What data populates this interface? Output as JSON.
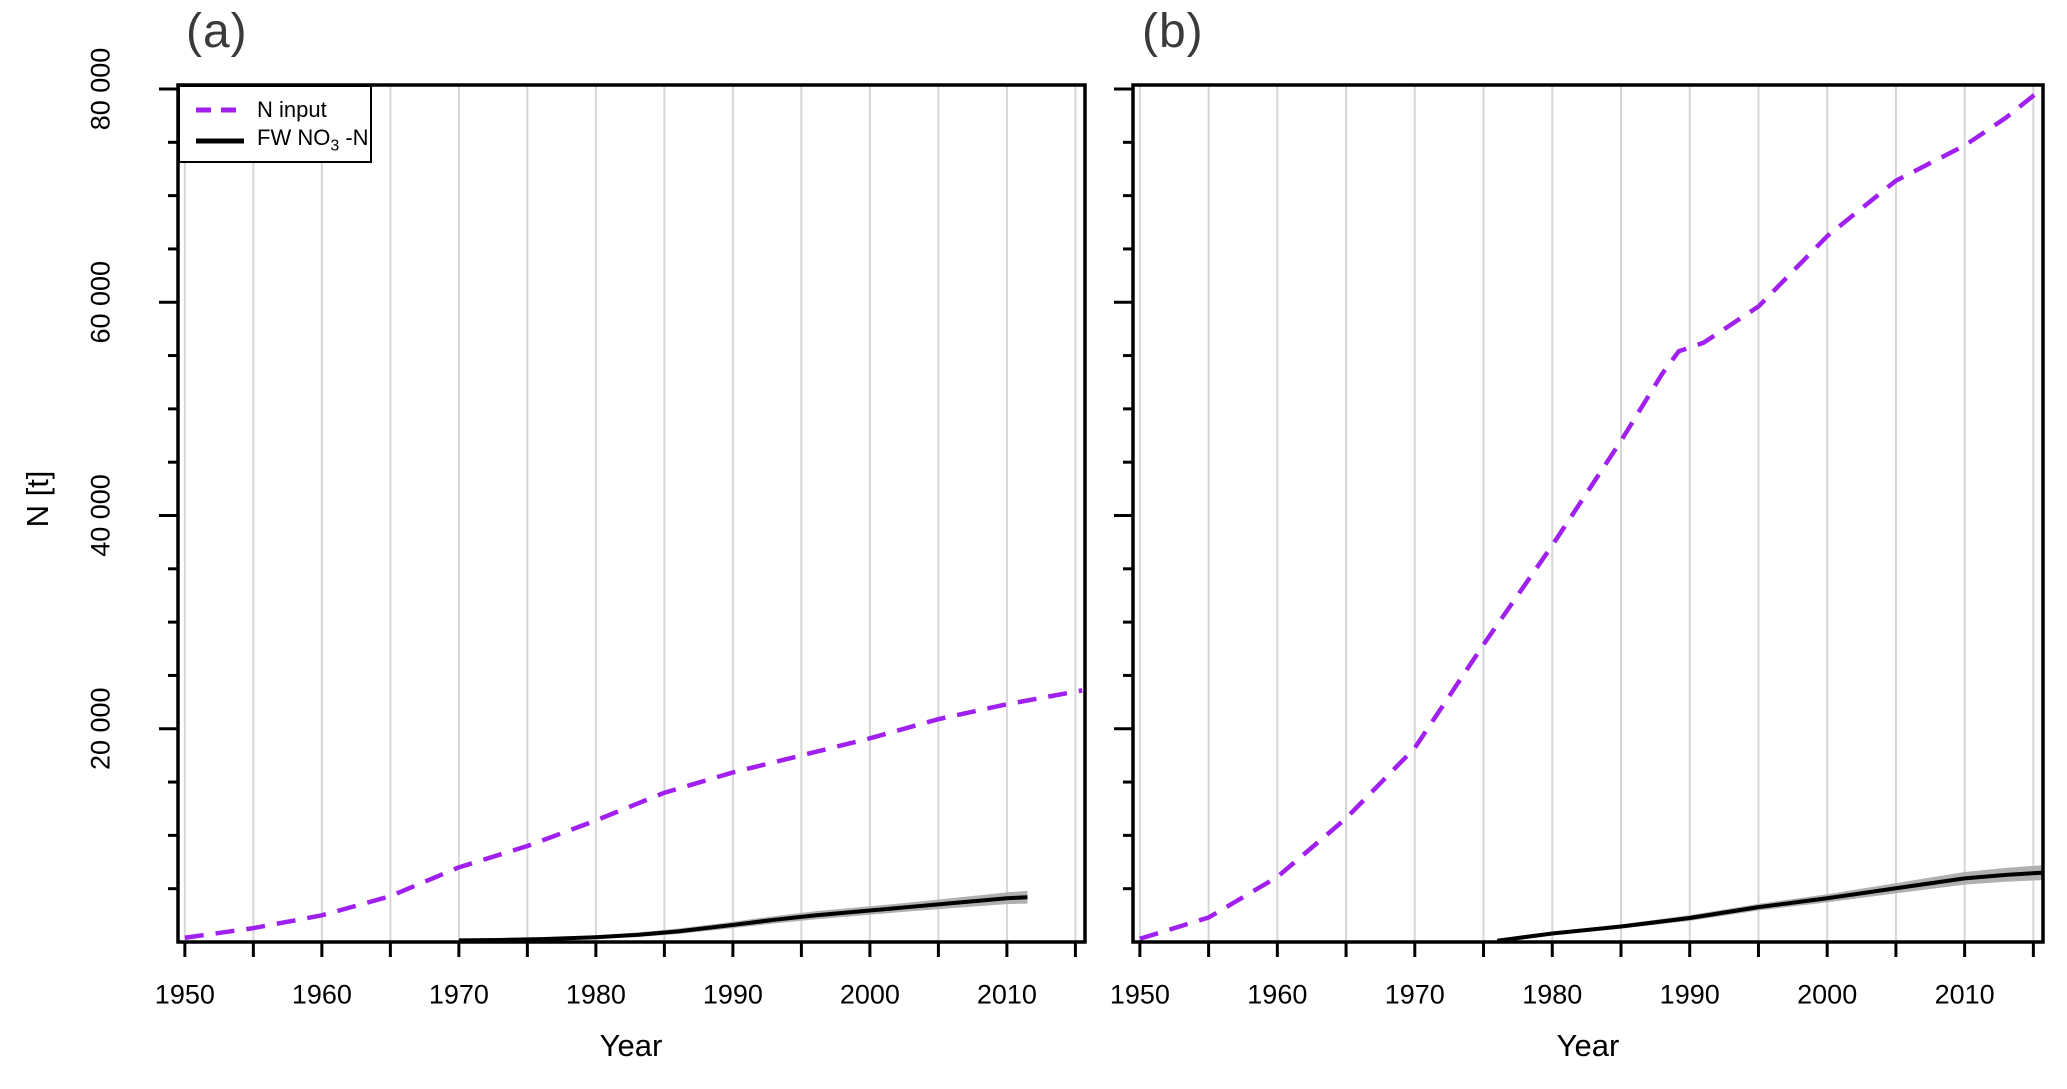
{
  "figure": {
    "background": "#ffffff",
    "ylabel": "N [t]",
    "xlabel": "Year"
  },
  "legend": {
    "border_color": "#000000",
    "background": "#ffffff",
    "items": [
      {
        "label": "N input",
        "color": "#A020F0",
        "line_style": "dashed"
      },
      {
        "label": "FW NO3 -N",
        "label_pre": "FW NO",
        "label_sub": "3",
        "label_post": " -N",
        "color": "#000000",
        "line_style": "solid"
      }
    ]
  },
  "colors": {
    "n_input_purple": "#A020F0",
    "fw_no3_black": "#000000",
    "confidence_band_gray": "#b0b0b0",
    "gridline_gray": "#d6d6d6",
    "panel_title_gray": "#3a3a3a"
  },
  "chart_data": [
    {
      "type": "line",
      "panel": "(a)",
      "xlabel": "Year",
      "ylabel": "N [t]",
      "xlim": [
        1949.5,
        2015.7
      ],
      "ylim": [
        0,
        80000
      ],
      "grid": "vertical-5yr",
      "legend_position": "top-left",
      "x_ticks": [
        {
          "year": 1950,
          "label": "1950"
        },
        {
          "year": 1960,
          "label": "1960"
        },
        {
          "year": 1970,
          "label": "1970"
        },
        {
          "year": 1980,
          "label": "1980"
        },
        {
          "year": 1990,
          "label": "1990"
        },
        {
          "year": 2000,
          "label": "2000"
        },
        {
          "year": 2010,
          "label": "2010"
        }
      ],
      "x_minor_tick_step": 5,
      "grid_x_years": [
        1950,
        1955,
        1960,
        1965,
        1970,
        1975,
        1980,
        1985,
        1990,
        1995,
        2000,
        2005,
        2010,
        2015
      ],
      "y_ticks": [
        {
          "value": 20000,
          "label": "20 000"
        },
        {
          "value": 40000,
          "label": "40 000"
        },
        {
          "value": 60000,
          "label": "60 000"
        },
        {
          "value": 80000,
          "label": "80 000"
        }
      ],
      "y_minor_tick_step": 5000,
      "show_y_tick_labels": true,
      "series": [
        {
          "name": "FW NO3 -N",
          "color": "#000000",
          "dash": false,
          "x": [
            1970,
            1973,
            1976,
            1980,
            1983,
            1986,
            1990,
            1993,
            1996,
            2000,
            2003,
            2006,
            2010,
            2011.5
          ],
          "y": [
            150,
            190,
            270,
            450,
            670,
            1000,
            1600,
            2080,
            2500,
            2950,
            3300,
            3650,
            4100,
            4200
          ],
          "band": {
            "color": "#b0b0b0",
            "upper": [
              240,
              300,
              400,
              620,
              880,
              1250,
              1900,
              2420,
              2880,
              3350,
              3720,
              4120,
              4650,
              4800
            ],
            "lower": [
              60,
              90,
              140,
              290,
              460,
              750,
              1300,
              1740,
              2120,
              2550,
              2880,
              3180,
              3550,
              3600
            ]
          }
        },
        {
          "name": "N input",
          "color": "#A020F0",
          "dash": true,
          "x": [
            1950,
            1955,
            1960,
            1965,
            1970,
            1975,
            1980,
            1985,
            1990,
            1995,
            2000,
            2005,
            2010,
            2015.5
          ],
          "y": [
            400,
            1300,
            2500,
            4300,
            7000,
            9000,
            11400,
            14000,
            15900,
            17500,
            19100,
            20900,
            22300,
            23600
          ]
        }
      ]
    },
    {
      "type": "line",
      "panel": "(b)",
      "xlabel": "Year",
      "ylabel": "N [t]",
      "xlim": [
        1949.5,
        2015.7
      ],
      "ylim": [
        0,
        80000
      ],
      "grid": "vertical-5yr",
      "legend_position": "none",
      "x_ticks": [
        {
          "year": 1950,
          "label": "1950"
        },
        {
          "year": 1960,
          "label": "1960"
        },
        {
          "year": 1970,
          "label": "1970"
        },
        {
          "year": 1980,
          "label": "1980"
        },
        {
          "year": 1990,
          "label": "1990"
        },
        {
          "year": 2000,
          "label": "2000"
        },
        {
          "year": 2010,
          "label": "2010"
        }
      ],
      "x_minor_tick_step": 5,
      "grid_x_years": [
        1950,
        1955,
        1960,
        1965,
        1970,
        1975,
        1980,
        1985,
        1990,
        1995,
        2000,
        2005,
        2010,
        2015
      ],
      "y_ticks": [
        {
          "value": 20000,
          "label": "20 000"
        },
        {
          "value": 40000,
          "label": "40 000"
        },
        {
          "value": 60000,
          "label": "60 000"
        },
        {
          "value": 80000,
          "label": "80 000"
        }
      ],
      "y_minor_tick_step": 5000,
      "show_y_tick_labels": false,
      "series": [
        {
          "name": "FW NO3 -N",
          "color": "#000000",
          "dash": false,
          "x": [
            1976,
            1980,
            1985,
            1990,
            1995,
            2000,
            2005,
            2010,
            2013,
            2015.6
          ],
          "y": [
            120,
            800,
            1450,
            2250,
            3270,
            4100,
            5040,
            5970,
            6300,
            6500
          ],
          "band": {
            "color": "#b0b0b0",
            "upper": [
              200,
              950,
              1650,
              2520,
              3580,
              4480,
              5520,
              6560,
              6950,
              7200
            ],
            "lower": [
              60,
              650,
              1250,
              1980,
              2960,
              3720,
              4560,
              5380,
              5650,
              5800
            ]
          }
        },
        {
          "name": "N input",
          "color": "#A020F0",
          "dash": true,
          "x": [
            1950,
            1955,
            1960,
            1965,
            1970,
            1975,
            1980,
            1985,
            1988,
            1989.2,
            1991,
            1995,
            2000,
            2005,
            2010,
            2013,
            2015.6
          ],
          "y": [
            300,
            2300,
            6100,
            11600,
            18200,
            27900,
            37200,
            47000,
            53300,
            55400,
            56200,
            59600,
            66200,
            71400,
            74700,
            77300,
            80000
          ]
        }
      ]
    }
  ]
}
